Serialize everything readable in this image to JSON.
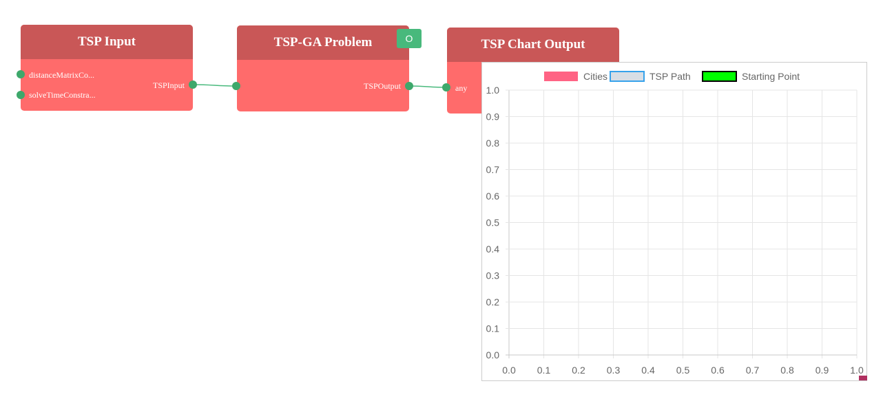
{
  "nodes": {
    "tsp_input": {
      "title": "TSP Input",
      "inputs": [
        "distanceMatrixCo...",
        "solveTimeConstra..."
      ],
      "output": "TSPInput"
    },
    "tsp_ga": {
      "title": "TSP-GA Problem",
      "input": "TSPInput",
      "output": "TSPOutput",
      "badge": "O"
    },
    "tsp_chart": {
      "title": "TSP Chart Output",
      "input": "any"
    }
  },
  "colors": {
    "node_body": "#ff6b6b",
    "node_header": "#c95757",
    "port": "#3ea86b",
    "link": "#48b97c",
    "badge": "#48b97c"
  },
  "chart_data": {
    "type": "scatter",
    "legend": [
      {
        "label": "Cities",
        "fill": "#ff6384",
        "stroke": "#ff6384"
      },
      {
        "label": "TSP Path",
        "fill": "#d8dee5",
        "stroke": "#36a2eb"
      },
      {
        "label": "Starting Point",
        "fill": "#00ff00",
        "stroke": "#000000"
      }
    ],
    "legend_position": "top",
    "xlim": [
      0,
      1
    ],
    "ylim": [
      0,
      1
    ],
    "xticks": [
      "0.0",
      "0.1",
      "0.2",
      "0.3",
      "0.4",
      "0.5",
      "0.6",
      "0.7",
      "0.8",
      "0.9",
      "1.0"
    ],
    "yticks": [
      "0.0",
      "0.1",
      "0.2",
      "0.3",
      "0.4",
      "0.5",
      "0.6",
      "0.7",
      "0.8",
      "0.9",
      "1.0"
    ],
    "grid": true,
    "series": []
  }
}
